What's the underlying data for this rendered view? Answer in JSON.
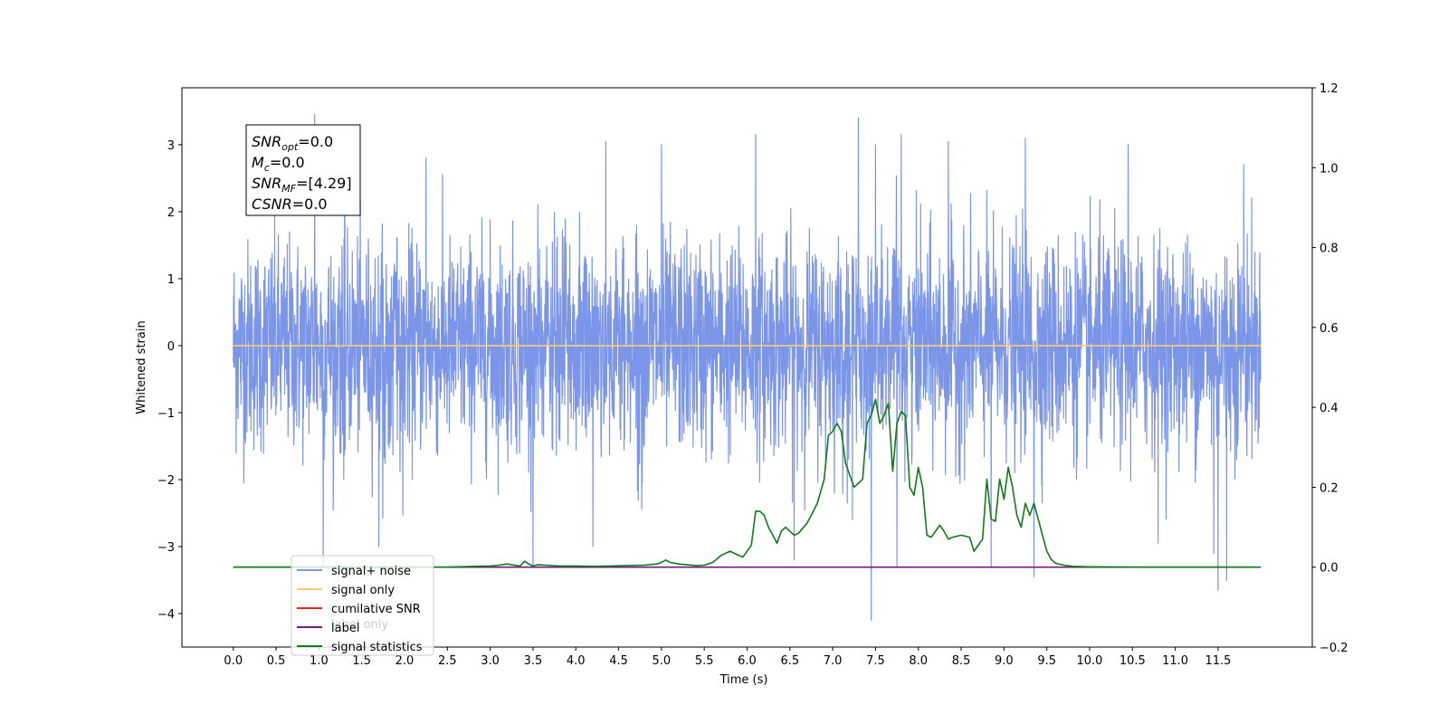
{
  "chart_data": {
    "type": "line",
    "xlabel": "Time (s)",
    "ylabel": "Whitened strain",
    "xlim": [
      -0.6,
      12.6
    ],
    "ylim": [
      -4.5,
      3.85
    ],
    "y2lim": [
      -0.2,
      1.2
    ],
    "x_ticks": [
      0.0,
      0.5,
      1.0,
      1.5,
      2.0,
      2.5,
      3.0,
      3.5,
      4.0,
      4.5,
      5.0,
      5.5,
      6.0,
      6.5,
      7.0,
      7.5,
      8.0,
      8.5,
      9.0,
      9.5,
      10.0,
      10.5,
      11.0,
      11.5
    ],
    "x_tick_labels": [
      "0.0",
      "0.5",
      "1.0",
      "1.5",
      "2.0",
      "2.5",
      "3.0",
      "3.5",
      "4.0",
      "4.5",
      "5.0",
      "5.5",
      "6.0",
      "6.5",
      "7.0",
      "7.5",
      "8.0",
      "8.5",
      "9.0",
      "9.5",
      "10.0",
      "10.5",
      "11.0",
      "11.5"
    ],
    "y_ticks": [
      -4,
      -3,
      -2,
      -1,
      0,
      1,
      2,
      3
    ],
    "y_tick_labels": [
      "−4",
      "−3",
      "−2",
      "−1",
      "0",
      "1",
      "2",
      "3"
    ],
    "y2_ticks": [
      -0.2,
      0.0,
      0.2,
      0.4,
      0.6,
      0.8,
      1.0,
      1.2
    ],
    "y2_tick_labels": [
      "−0.2",
      "0.0",
      "0.2",
      "0.4",
      "0.6",
      "0.8",
      "1.0",
      "1.2"
    ],
    "annotation": {
      "lines": [
        {
          "base": "SNR",
          "sub": "opt",
          "rest": "=0.0"
        },
        {
          "base": "M",
          "sub": "c",
          "rest": "=0.0"
        },
        {
          "base": "SNR",
          "sub": "MF",
          "rest": "=[4.29]"
        },
        {
          "base": "CSNR",
          "sub": "",
          "rest": "=0.0"
        }
      ]
    },
    "legend": {
      "placement": "lower-left",
      "entries": [
        {
          "label": "signal+ noise",
          "color": "#7b95e8"
        },
        {
          "label": "signal only",
          "color": "#ffc971"
        },
        {
          "label": "cumilative SNR",
          "color": "#e8231f"
        },
        {
          "label": "label",
          "color": "#7a177a"
        },
        {
          "label": "signal statistics",
          "color": "#0f7a1a"
        }
      ],
      "hidden_label": "label only"
    },
    "series": [
      {
        "name": "signal+ noise",
        "axis": "left",
        "color": "#7b95e8",
        "x_range": [
          0.0,
          12.0
        ],
        "mean": 0.0,
        "std": 0.78,
        "spikes": [
          {
            "x": 0.95,
            "y": 3.45
          },
          {
            "x": 1.05,
            "y": -3.3
          },
          {
            "x": 1.3,
            "y": 2.8
          },
          {
            "x": 1.7,
            "y": -3.0
          },
          {
            "x": 2.25,
            "y": 2.8
          },
          {
            "x": 3.5,
            "y": -3.3
          },
          {
            "x": 4.2,
            "y": -3.0
          },
          {
            "x": 4.35,
            "y": 3.05
          },
          {
            "x": 5.0,
            "y": 3.0
          },
          {
            "x": 6.1,
            "y": 3.15
          },
          {
            "x": 6.55,
            "y": -3.2
          },
          {
            "x": 7.3,
            "y": 3.4
          },
          {
            "x": 7.45,
            "y": -4.1
          },
          {
            "x": 7.5,
            "y": 3.0
          },
          {
            "x": 7.75,
            "y": -3.3
          },
          {
            "x": 7.8,
            "y": 3.15
          },
          {
            "x": 8.35,
            "y": 3.05
          },
          {
            "x": 8.85,
            "y": -3.3
          },
          {
            "x": 9.25,
            "y": 3.1
          },
          {
            "x": 9.35,
            "y": -3.45
          },
          {
            "x": 10.45,
            "y": 3.0
          },
          {
            "x": 10.8,
            "y": -2.95
          },
          {
            "x": 11.5,
            "y": -3.65
          },
          {
            "x": 11.6,
            "y": -3.5
          },
          {
            "x": 11.45,
            "y": -3.1
          },
          {
            "x": 11.8,
            "y": 2.7
          }
        ]
      },
      {
        "name": "signal only",
        "axis": "left",
        "color": "#ffc971",
        "x": [
          0.0,
          12.0
        ],
        "values": [
          0.0,
          0.0
        ]
      },
      {
        "name": "label",
        "axis": "right",
        "color": "#7a177a",
        "x": [
          0.0,
          11.95
        ],
        "values": [
          0.0,
          0.0
        ]
      },
      {
        "name": "signal statistics",
        "axis": "right",
        "color": "#0f7a1a",
        "x": [
          0.0,
          2.0,
          2.5,
          2.8,
          3.0,
          3.1,
          3.2,
          3.25,
          3.35,
          3.4,
          3.45,
          3.5,
          3.55,
          3.65,
          3.8,
          4.0,
          4.2,
          4.4,
          4.6,
          4.8,
          4.95,
          5.0,
          5.05,
          5.1,
          5.2,
          5.3,
          5.4,
          5.5,
          5.6,
          5.7,
          5.8,
          5.9,
          5.95,
          6.05,
          6.1,
          6.15,
          6.2,
          6.25,
          6.3,
          6.35,
          6.4,
          6.45,
          6.55,
          6.6,
          6.7,
          6.75,
          6.82,
          6.9,
          6.95,
          7.0,
          7.05,
          7.1,
          7.15,
          7.2,
          7.25,
          7.3,
          7.35,
          7.4,
          7.45,
          7.5,
          7.55,
          7.6,
          7.65,
          7.7,
          7.75,
          7.8,
          7.85,
          7.9,
          7.95,
          8.0,
          8.05,
          8.1,
          8.15,
          8.2,
          8.25,
          8.3,
          8.35,
          8.4,
          8.5,
          8.6,
          8.65,
          8.7,
          8.75,
          8.8,
          8.85,
          8.9,
          8.95,
          9.0,
          9.05,
          9.1,
          9.15,
          9.2,
          9.25,
          9.3,
          9.35,
          9.4,
          9.45,
          9.5,
          9.55,
          9.6,
          9.7,
          9.8,
          10.0,
          10.5,
          12.0
        ],
        "values": [
          0.0,
          0.0,
          0.0,
          0.002,
          0.003,
          0.005,
          0.008,
          0.006,
          0.003,
          0.015,
          0.008,
          0.003,
          0.006,
          0.005,
          0.003,
          0.003,
          0.002,
          0.003,
          0.004,
          0.005,
          0.008,
          0.012,
          0.018,
          0.012,
          0.008,
          0.006,
          0.004,
          0.005,
          0.012,
          0.03,
          0.04,
          0.03,
          0.025,
          0.055,
          0.14,
          0.14,
          0.13,
          0.1,
          0.08,
          0.06,
          0.09,
          0.1,
          0.08,
          0.085,
          0.11,
          0.13,
          0.16,
          0.22,
          0.33,
          0.34,
          0.36,
          0.34,
          0.26,
          0.23,
          0.2,
          0.21,
          0.22,
          0.36,
          0.38,
          0.42,
          0.36,
          0.38,
          0.41,
          0.24,
          0.36,
          0.39,
          0.38,
          0.2,
          0.18,
          0.25,
          0.2,
          0.08,
          0.075,
          0.09,
          0.105,
          0.09,
          0.07,
          0.075,
          0.08,
          0.075,
          0.04,
          0.055,
          0.07,
          0.22,
          0.12,
          0.115,
          0.22,
          0.17,
          0.25,
          0.2,
          0.13,
          0.1,
          0.16,
          0.13,
          0.16,
          0.12,
          0.08,
          0.04,
          0.02,
          0.01,
          0.005,
          0.002,
          0.001,
          0.0,
          0.0
        ]
      }
    ]
  }
}
